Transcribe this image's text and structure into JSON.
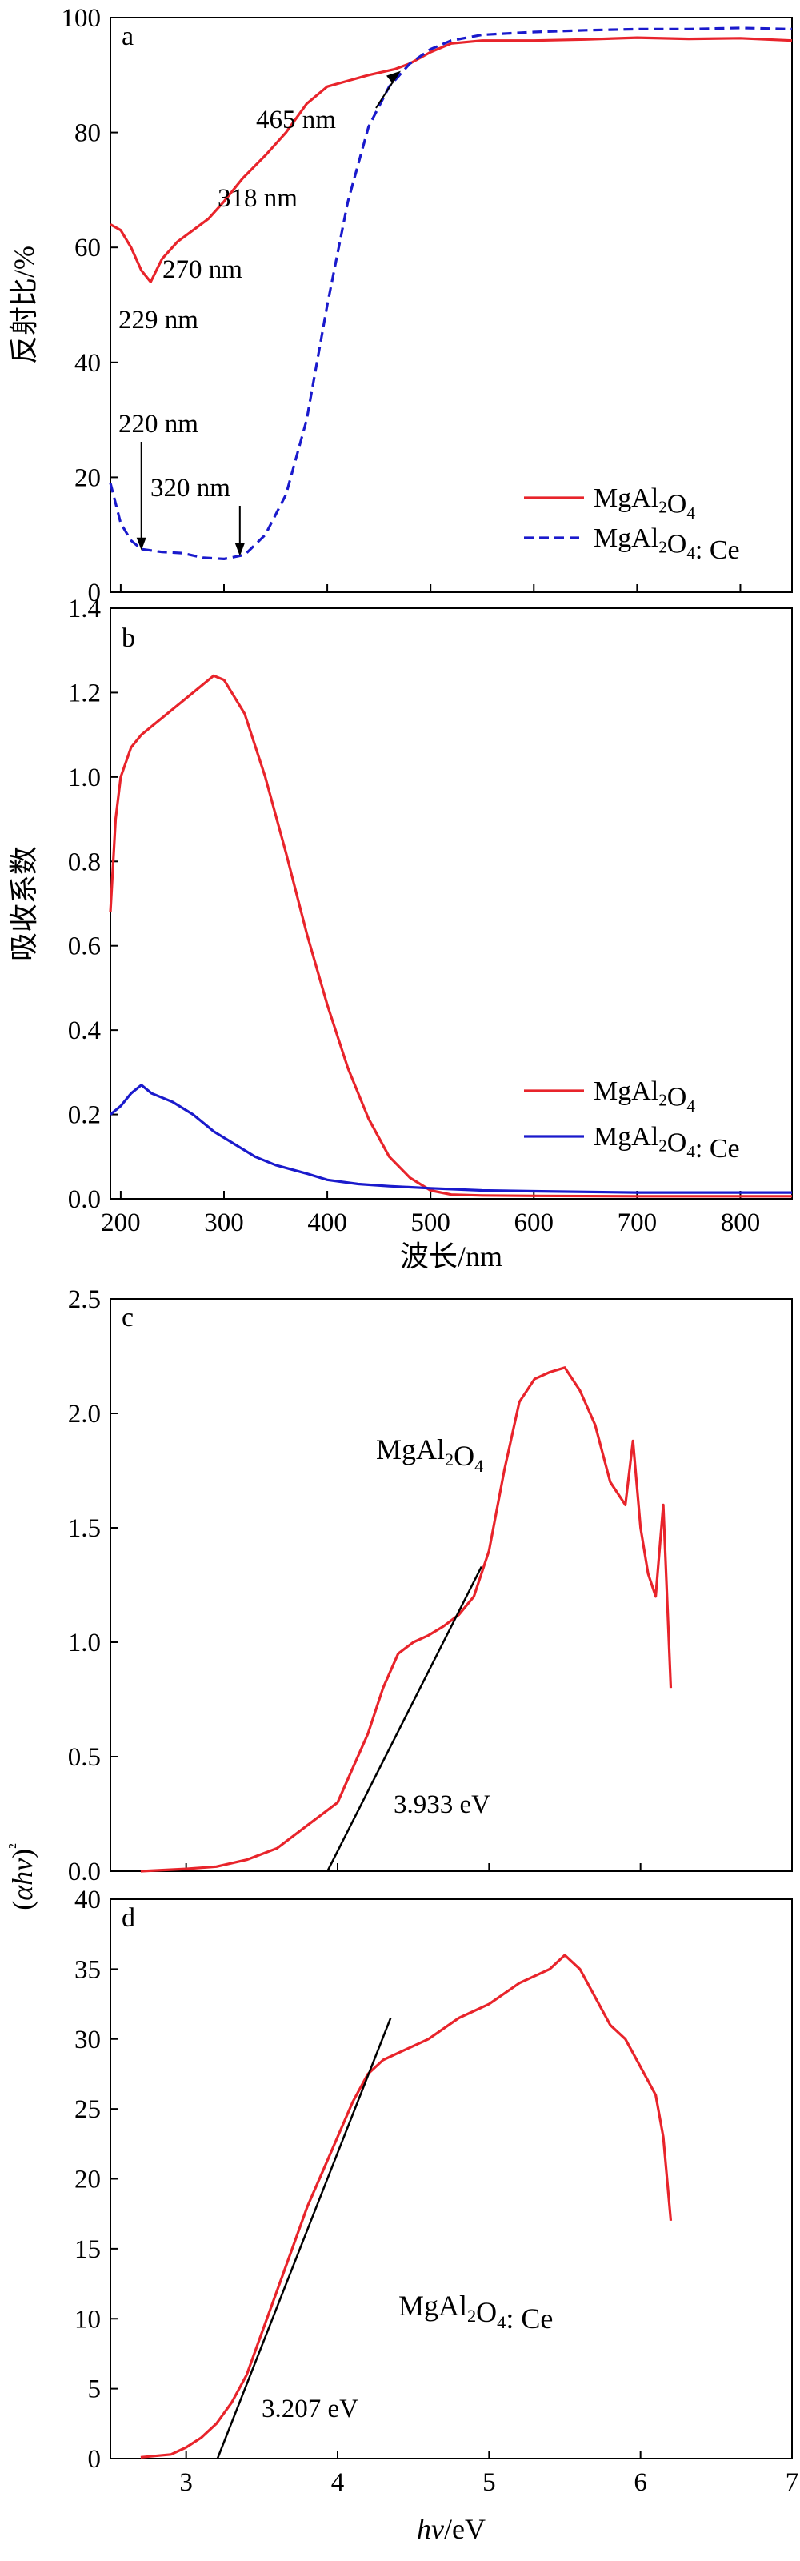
{
  "colors": {
    "red": "#e8242b",
    "blue": "#1a1acc",
    "line": "#000000"
  },
  "chart_data": [
    {
      "panel": "a",
      "type": "line",
      "ylabel": "反射比/%",
      "xlim": [
        190,
        850
      ],
      "ylim": [
        0,
        100
      ],
      "yticks": [
        "0",
        "20",
        "40",
        "60",
        "80",
        "100"
      ],
      "legend_position": "bottom-right",
      "series": [
        {
          "name": "MgAl2O4",
          "color": "#e8242b",
          "style": "solid",
          "x": [
            190,
            200,
            210,
            220,
            229,
            240,
            255,
            270,
            285,
            300,
            318,
            340,
            360,
            380,
            400,
            420,
            440,
            465,
            480,
            500,
            520,
            550,
            600,
            650,
            700,
            750,
            800,
            850
          ],
          "y": [
            64,
            63,
            60,
            56,
            54,
            58,
            61,
            63,
            65,
            68,
            72,
            76,
            80,
            85,
            88,
            89,
            90,
            91,
            92,
            94,
            95.5,
            96,
            96,
            96.2,
            96.5,
            96.3,
            96.4,
            96
          ]
        },
        {
          "name": "MgAl2O4: Ce",
          "color": "#1a1acc",
          "style": "dashed",
          "x": [
            190,
            200,
            210,
            220,
            240,
            260,
            280,
            300,
            320,
            340,
            360,
            380,
            400,
            420,
            440,
            460,
            480,
            500,
            520,
            550,
            600,
            650,
            700,
            750,
            800,
            850
          ],
          "y": [
            19,
            12,
            9,
            7.5,
            7,
            6.8,
            6,
            5.8,
            6.5,
            10,
            17,
            30,
            50,
            68,
            81,
            88,
            92,
            94.5,
            96,
            97,
            97.5,
            97.8,
            98,
            98,
            98.2,
            98
          ]
        }
      ],
      "annotations": [
        {
          "text": "465 nm",
          "x": 465,
          "y": 91
        },
        {
          "text": "318 nm",
          "x": 318,
          "y": 72
        },
        {
          "text": "270 nm",
          "x": 270,
          "y": 63
        },
        {
          "text": "229 nm",
          "x": 229,
          "y": 54
        },
        {
          "text": "220 nm",
          "x": 220,
          "y": 7
        },
        {
          "text": "320 nm",
          "x": 320,
          "y": 6
        }
      ]
    },
    {
      "panel": "b",
      "type": "line",
      "xlabel": "波长/nm",
      "ylabel": "吸收系数",
      "xlim": [
        190,
        850
      ],
      "ylim": [
        0,
        1.4
      ],
      "xticks": [
        "200",
        "300",
        "400",
        "500",
        "600",
        "700",
        "800"
      ],
      "yticks": [
        "0.0",
        "0.2",
        "0.4",
        "0.6",
        "0.8",
        "1.0",
        "1.2",
        "1.4"
      ],
      "legend_position": "bottom-right",
      "series": [
        {
          "name": "MgAl2O4",
          "color": "#e8242b",
          "style": "solid",
          "x": [
            190,
            195,
            200,
            210,
            220,
            240,
            260,
            280,
            290,
            300,
            320,
            340,
            360,
            380,
            400,
            420,
            440,
            460,
            480,
            500,
            520,
            550,
            600,
            700,
            850
          ],
          "y": [
            0.68,
            0.9,
            1.0,
            1.07,
            1.1,
            1.14,
            1.18,
            1.22,
            1.24,
            1.23,
            1.15,
            1.0,
            0.82,
            0.63,
            0.46,
            0.31,
            0.19,
            0.1,
            0.05,
            0.02,
            0.01,
            0.008,
            0.007,
            0.006,
            0.006
          ]
        },
        {
          "name": "MgAl2O4: Ce",
          "color": "#1a1acc",
          "style": "solid",
          "x": [
            190,
            200,
            210,
            220,
            230,
            250,
            270,
            290,
            310,
            330,
            350,
            380,
            400,
            430,
            460,
            500,
            550,
            600,
            700,
            850
          ],
          "y": [
            0.2,
            0.22,
            0.25,
            0.27,
            0.25,
            0.23,
            0.2,
            0.16,
            0.13,
            0.1,
            0.08,
            0.06,
            0.045,
            0.035,
            0.03,
            0.025,
            0.02,
            0.018,
            0.015,
            0.015
          ]
        }
      ]
    },
    {
      "panel": "c",
      "type": "line",
      "xlim": [
        2.5,
        7
      ],
      "ylim": [
        0,
        2.5
      ],
      "yticks": [
        "0.0",
        "0.5",
        "1.0",
        "1.5",
        "2.0",
        "2.5"
      ],
      "series": [
        {
          "name": "MgAl2O4",
          "color": "#e8242b",
          "style": "solid",
          "x": [
            2.7,
            3.0,
            3.2,
            3.4,
            3.6,
            3.8,
            3.9,
            4.0,
            4.1,
            4.2,
            4.3,
            4.4,
            4.5,
            4.6,
            4.7,
            4.8,
            4.9,
            5.0,
            5.1,
            5.2,
            5.3,
            5.4,
            5.5,
            5.6,
            5.7,
            5.8,
            5.9,
            5.95,
            6.0,
            6.05,
            6.1,
            6.15,
            6.2
          ],
          "y": [
            0.0,
            0.01,
            0.02,
            0.05,
            0.1,
            0.2,
            0.25,
            0.3,
            0.45,
            0.6,
            0.8,
            0.95,
            1.0,
            1.03,
            1.07,
            1.12,
            1.2,
            1.4,
            1.75,
            2.05,
            2.15,
            2.18,
            2.2,
            2.1,
            1.95,
            1.7,
            1.6,
            1.88,
            1.5,
            1.3,
            1.2,
            1.6,
            0.8
          ]
        }
      ],
      "fit_line": {
        "x": [
          3.933,
          4.95
        ],
        "y": [
          0,
          1.33
        ]
      },
      "annotations": [
        {
          "text": "MgAl2O4",
          "x": 4.75,
          "y": 1.85
        },
        {
          "text": "3.933 eV",
          "x": 4.35,
          "y": 0.35
        }
      ]
    },
    {
      "panel": "d",
      "type": "line",
      "xlabel": "hν/eV",
      "ylabel": "(αhν)²",
      "xlim": [
        2.5,
        7
      ],
      "ylim": [
        0,
        40
      ],
      "xticks": [
        "3",
        "4",
        "5",
        "6",
        "7"
      ],
      "yticks": [
        "0",
        "5",
        "10",
        "15",
        "20",
        "25",
        "30",
        "35",
        "40"
      ],
      "series": [
        {
          "name": "MgAl2O4: Ce",
          "color": "#e8242b",
          "style": "solid",
          "x": [
            2.7,
            2.9,
            3.0,
            3.1,
            3.2,
            3.3,
            3.4,
            3.5,
            3.6,
            3.7,
            3.8,
            3.9,
            4.0,
            4.1,
            4.2,
            4.3,
            4.4,
            4.6,
            4.8,
            5.0,
            5.2,
            5.4,
            5.5,
            5.6,
            5.7,
            5.8,
            5.9,
            6.0,
            6.1,
            6.15,
            6.2
          ],
          "y": [
            0.1,
            0.3,
            0.8,
            1.5,
            2.5,
            4,
            6,
            9,
            12,
            15,
            18,
            20.5,
            23,
            25.5,
            27.5,
            28.5,
            29,
            30,
            31.5,
            32.5,
            34,
            35,
            36,
            35,
            33,
            31,
            30,
            28,
            26,
            23,
            17
          ]
        }
      ],
      "fit_line": {
        "x": [
          3.207,
          4.35
        ],
        "y": [
          0,
          31.5
        ]
      },
      "annotations": [
        {
          "text": "MgAl2O4: Ce",
          "x": 4.5,
          "y": 16
        },
        {
          "text": "3.207 eV",
          "x": 3.5,
          "y": 4
        }
      ]
    }
  ]
}
